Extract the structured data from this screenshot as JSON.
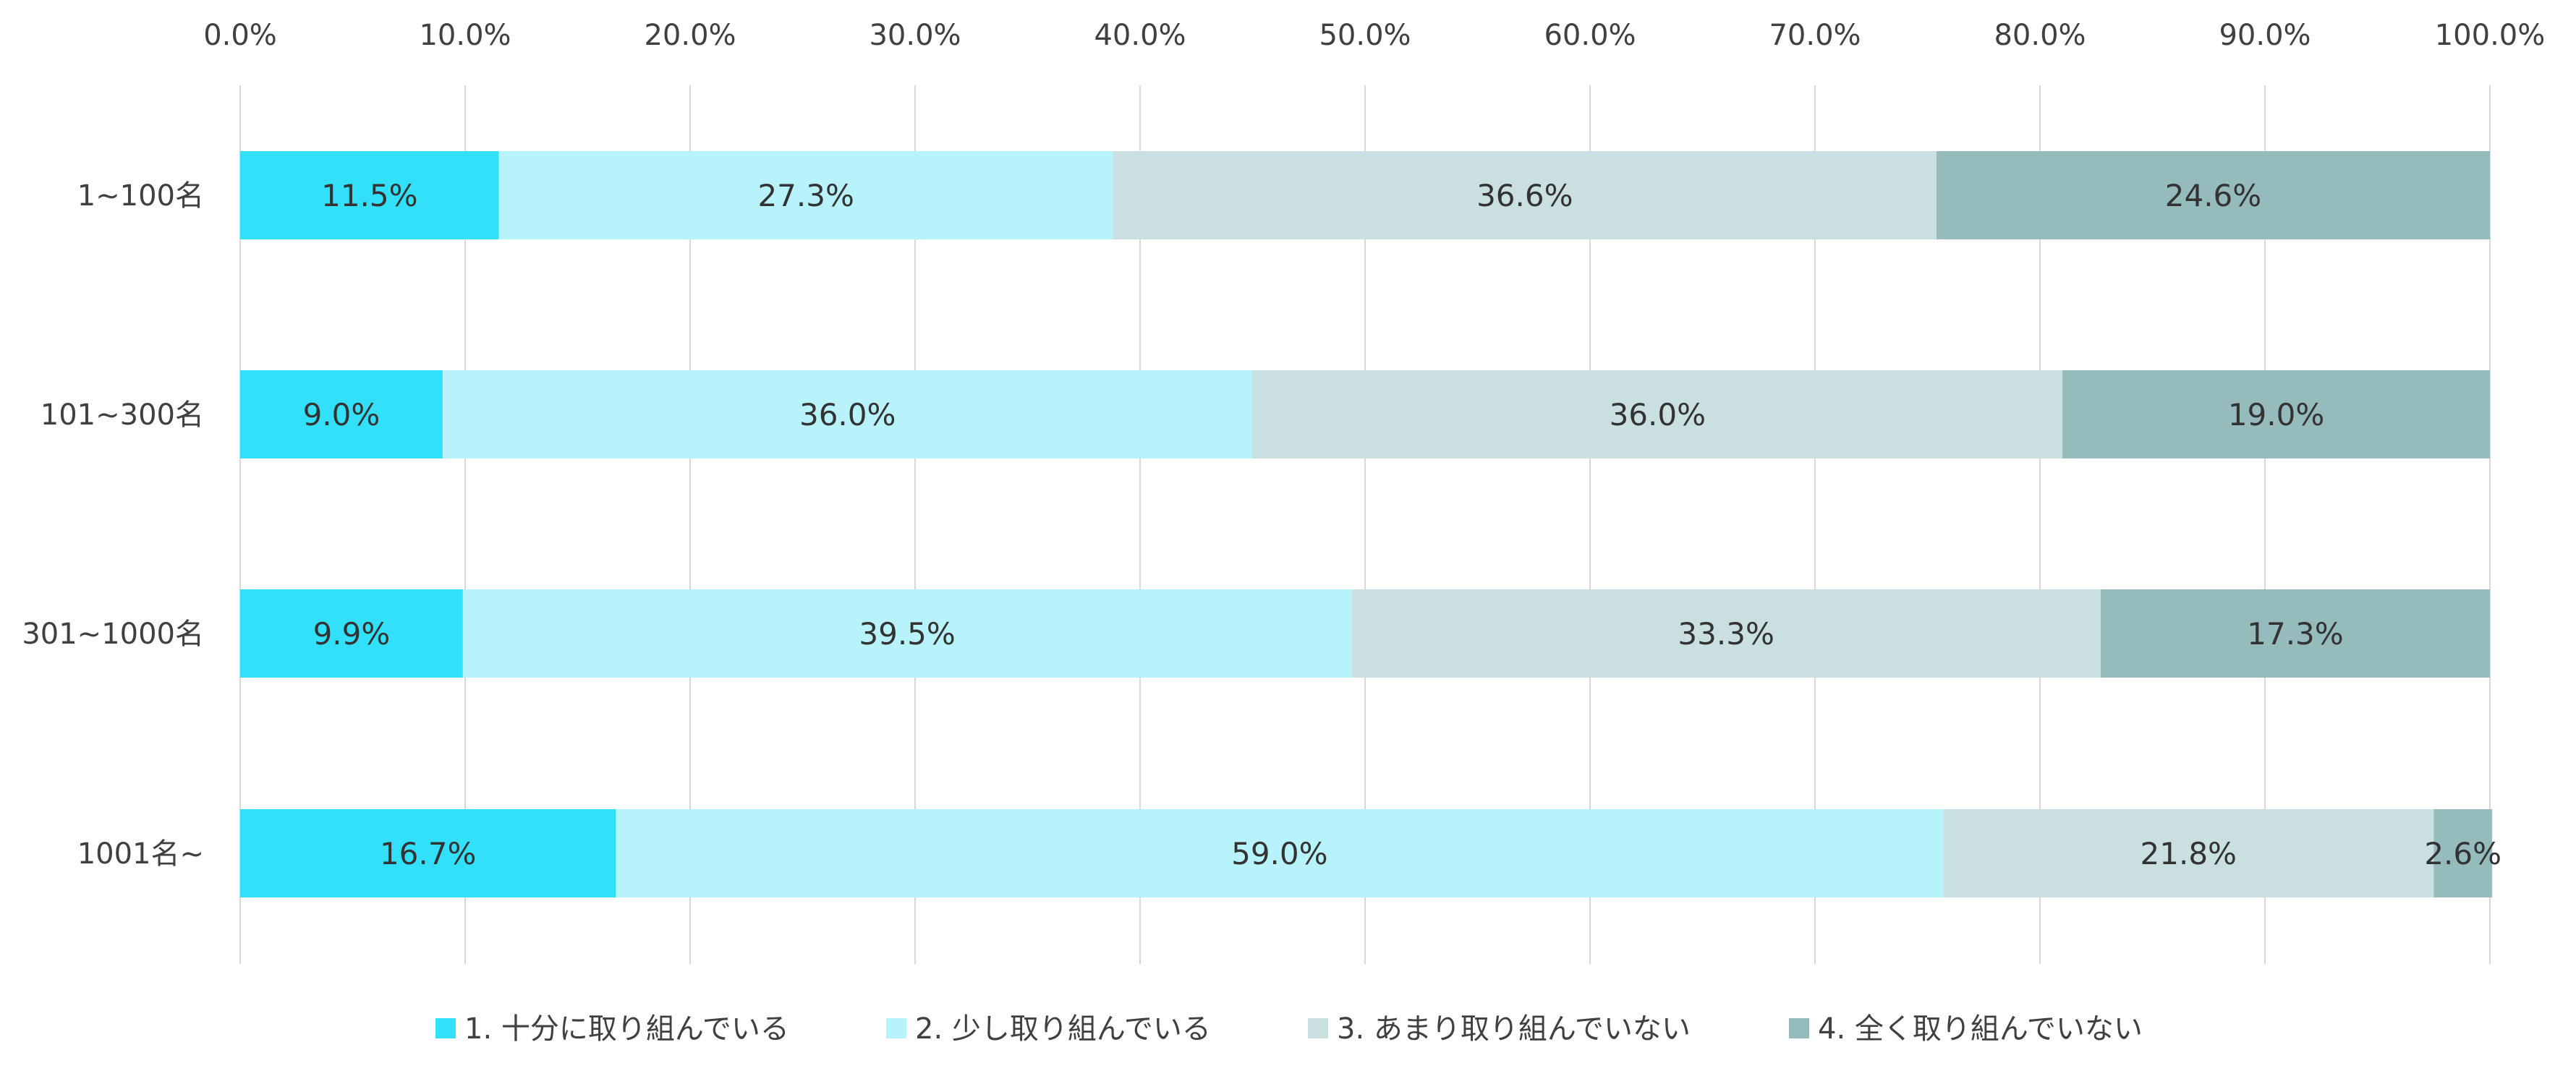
{
  "chart_data": {
    "type": "bar",
    "orientation": "horizontal",
    "stacked": true,
    "categories": [
      "1~100名",
      "101~300名",
      "301~1000名",
      "1001名~"
    ],
    "series": [
      {
        "name": "1.  十分に取り組んでいる",
        "values": [
          11.5,
          9.0,
          9.9,
          16.7
        ],
        "color": "#33E0FA",
        "labels": [
          "11.5%",
          "9.0%",
          "9.9%",
          "16.7%"
        ]
      },
      {
        "name": "2.  少し取り組んでいる",
        "values": [
          27.3,
          36.0,
          39.5,
          59.0
        ],
        "color": "#B8F2FA",
        "labels": [
          "27.3%",
          "36.0%",
          "39.5%",
          "59.0%"
        ]
      },
      {
        "name": "3.  あまり取り組んでいない",
        "values": [
          36.6,
          36.0,
          33.3,
          21.8
        ],
        "color": "#CADFE0",
        "labels": [
          "36.6%",
          "36.0%",
          "33.3%",
          "21.8%"
        ]
      },
      {
        "name": "4.  全く取り組んでいない",
        "values": [
          24.6,
          19.0,
          17.3,
          2.6
        ],
        "color": "#95BBBC",
        "labels": [
          "24.6%",
          "19.0%",
          "17.3%",
          "2.6%"
        ]
      }
    ],
    "xlim": [
      0,
      100
    ],
    "xticks": [
      0,
      10,
      20,
      30,
      40,
      50,
      60,
      70,
      80,
      90,
      100
    ],
    "xtick_labels": [
      "0.0%",
      "10.0%",
      "20.0%",
      "30.0%",
      "40.0%",
      "50.0%",
      "60.0%",
      "70.0%",
      "80.0%",
      "90.0%",
      "100.0%"
    ],
    "x_axis_position": "top",
    "grid": true,
    "grid_color": "#D9D9D9",
    "legend_position": "bottom"
  }
}
